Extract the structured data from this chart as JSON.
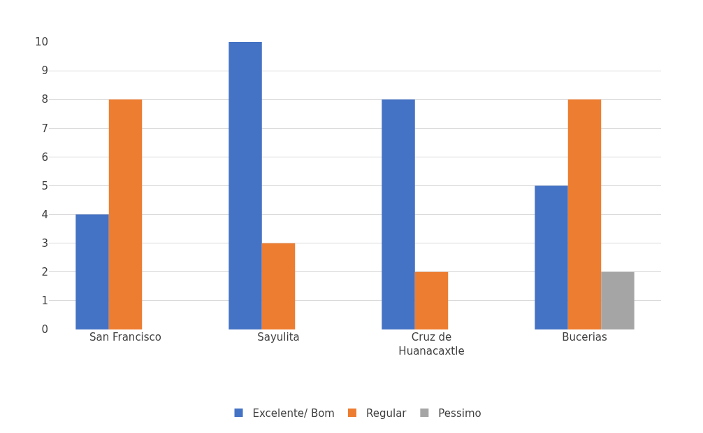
{
  "chart_data": {
    "type": "bar",
    "categories": [
      "San Francisco",
      "Sayulita",
      "Cruz de Huanacaxtle",
      "Bucerias"
    ],
    "series": [
      {
        "name": "Excelente/ Bom",
        "color": "#4472c4",
        "values": [
          4,
          10,
          8,
          5
        ]
      },
      {
        "name": "Regular",
        "color": "#ed7d31",
        "values": [
          8,
          3,
          2,
          8
        ]
      },
      {
        "name": "Pessimo",
        "color": "#a5a5a5",
        "values": [
          0,
          0,
          0,
          2
        ]
      }
    ],
    "ylim": [
      0,
      10
    ],
    "yticks": [
      0,
      1,
      2,
      3,
      4,
      5,
      6,
      7,
      8,
      9,
      10
    ],
    "grid": "y",
    "legend": "bottom"
  }
}
